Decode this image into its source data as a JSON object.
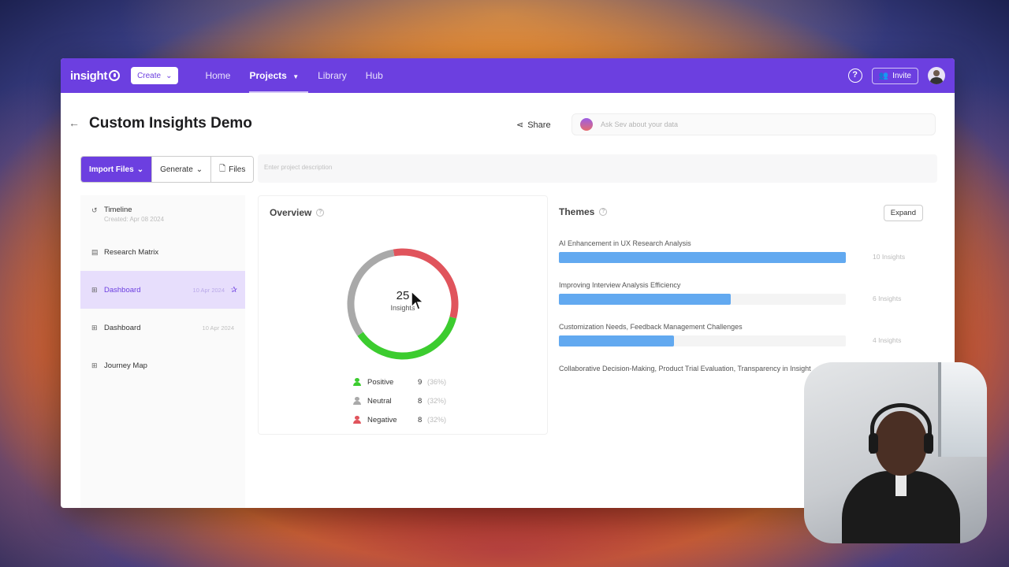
{
  "nav": {
    "logo": "insight",
    "create_label": "Create",
    "items": [
      {
        "label": "Home"
      },
      {
        "label": "Projects"
      },
      {
        "label": "Library"
      },
      {
        "label": "Hub"
      }
    ],
    "help_label": "?",
    "invite_label": "Invite"
  },
  "header": {
    "title": "Custom Insights Demo",
    "share_label": "Share",
    "ask_placeholder": "Ask Sev about your data"
  },
  "toolbar": {
    "import_label": "Import Files",
    "generate_label": "Generate",
    "files_label": "Files",
    "description_placeholder": "Enter project description"
  },
  "sidebar": {
    "timeline_label": "Timeline",
    "timeline_created": "Created: Apr 08 2024",
    "items": [
      {
        "label": "Research Matrix",
        "date": ""
      },
      {
        "label": "Dashboard",
        "date": "10 Apr 2024"
      },
      {
        "label": "Dashboard",
        "date": "10 Apr 2024"
      },
      {
        "label": "Journey Map",
        "date": ""
      }
    ]
  },
  "overview": {
    "title": "Overview",
    "total": "25",
    "total_label": "Insights",
    "segments": [
      {
        "label": "Positive",
        "count": "9",
        "pct": "(36%)",
        "color": "#3ccc2f",
        "value": 9
      },
      {
        "label": "Neutral",
        "count": "8",
        "pct": "(32%)",
        "color": "#a9a9a9",
        "value": 8
      },
      {
        "label": "Negative",
        "count": "8",
        "pct": "(32%)",
        "color": "#e0545c",
        "value": 8
      }
    ]
  },
  "themes": {
    "title": "Themes",
    "expand_label": "Expand",
    "items": [
      {
        "title": "AI Enhancement in UX Research Analysis",
        "count": "10 Insights",
        "fraction": 1.0
      },
      {
        "title": "Improving Interview Analysis Efficiency",
        "count": "6 Insights",
        "fraction": 0.6
      },
      {
        "title": "Customization Needs, Feedback Management Challenges",
        "count": "4 Insights",
        "fraction": 0.4
      },
      {
        "title": "Collaborative Decision-Making, Product Trial Evaluation, Transparency in Insight",
        "count": "",
        "fraction": 0
      }
    ]
  },
  "colors": {
    "brand": "#6c3fe0",
    "bar": "#62a9f0"
  }
}
